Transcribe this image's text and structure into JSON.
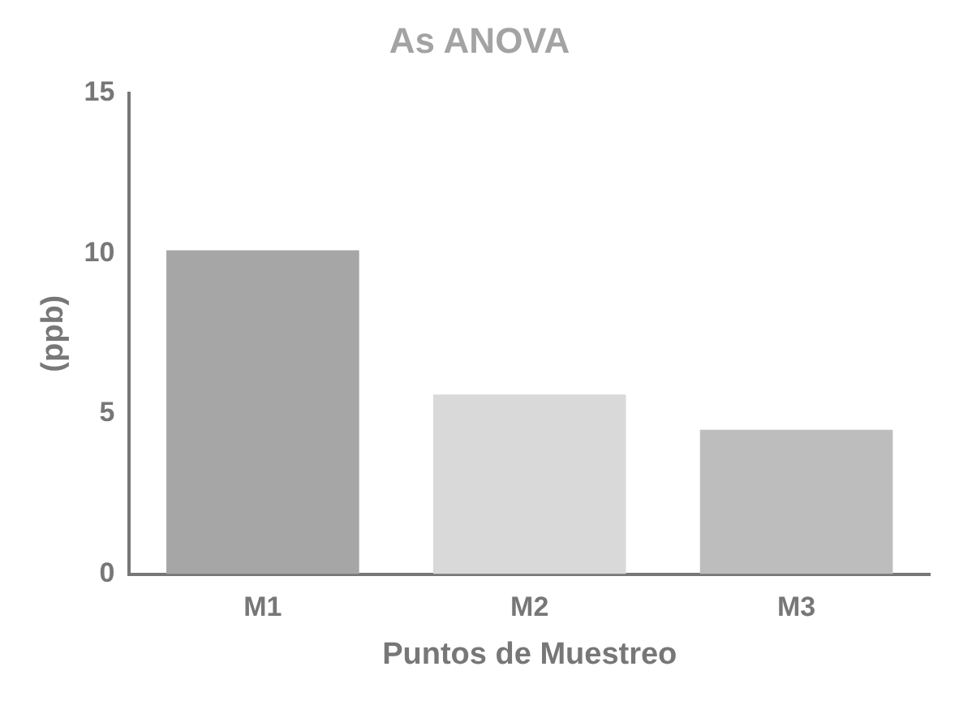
{
  "chart_data": {
    "type": "bar",
    "title": "As ANOVA",
    "xlabel": "Puntos de Muestreo",
    "ylabel": "(ppb)",
    "categories": [
      "M1",
      "M2",
      "M3"
    ],
    "values": [
      10.1,
      5.6,
      4.5
    ],
    "colors": [
      "#a6a6a6",
      "#d9d9d9",
      "#bdbdbd"
    ],
    "ylim": [
      0,
      15
    ],
    "yticks": [
      0,
      5,
      10,
      15
    ],
    "grid": false,
    "legend": false
  }
}
